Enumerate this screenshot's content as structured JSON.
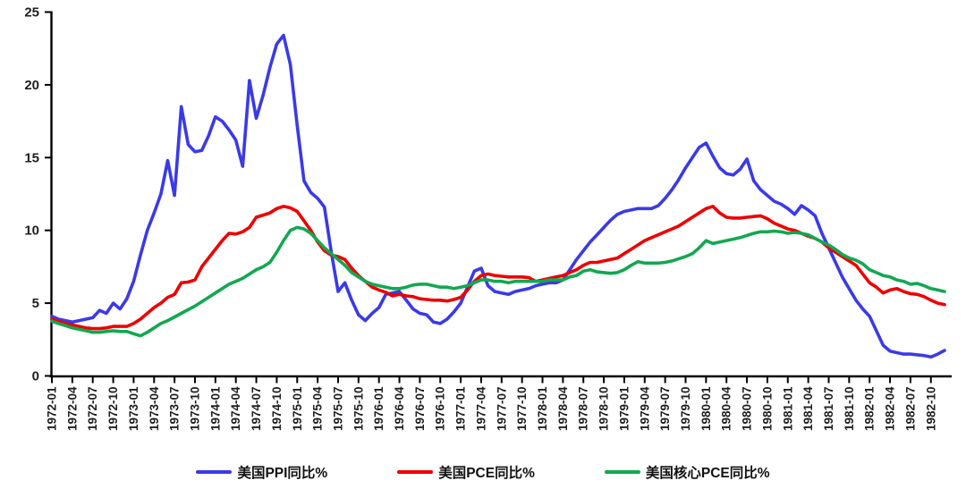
{
  "chart_data": {
    "type": "line",
    "title": "",
    "xlabel": "",
    "ylabel": "",
    "x_unit": "month",
    "x_start": "1972-01",
    "x_end": "1982-12",
    "x_tick_every_months": 3,
    "x_tick_labels": [
      "1972-01",
      "1972-04",
      "1972-07",
      "1972-10",
      "1973-01",
      "1973-04",
      "1973-07",
      "1973-10",
      "1974-01",
      "1974-04",
      "1974-07",
      "1974-10",
      "1975-01",
      "1975-04",
      "1975-07",
      "1975-10",
      "1976-01",
      "1976-04",
      "1976-07",
      "1976-10",
      "1977-01",
      "1977-04",
      "1977-07",
      "1977-10",
      "1978-01",
      "1978-04",
      "1978-07",
      "1978-10",
      "1979-01",
      "1979-04",
      "1979-07",
      "1979-10",
      "1980-01",
      "1980-04",
      "1980-07",
      "1980-10",
      "1981-01",
      "1981-04",
      "1981-07",
      "1981-10",
      "1982-01",
      "1982-04",
      "1982-07",
      "1982-10"
    ],
    "ylim": [
      0,
      25
    ],
    "y_ticks": [
      0,
      5,
      10,
      15,
      20,
      25
    ],
    "grid": "off",
    "legend_position": "bottom",
    "axis_color": "#000000",
    "series": [
      {
        "name": "美国PPI同比%",
        "color": "#3A3AE8",
        "values": [
          4.1,
          3.9,
          3.8,
          3.7,
          3.8,
          3.9,
          4.0,
          4.5,
          4.3,
          5.0,
          4.6,
          5.3,
          6.5,
          8.3,
          10.0,
          11.2,
          12.5,
          14.8,
          12.4,
          18.5,
          15.9,
          15.4,
          15.5,
          16.5,
          17.8,
          17.5,
          16.9,
          16.2,
          14.4,
          20.3,
          17.7,
          19.3,
          21.2,
          22.8,
          23.4,
          21.4,
          17.2,
          13.4,
          12.6,
          12.2,
          11.6,
          8.5,
          5.8,
          6.4,
          5.2,
          4.2,
          3.8,
          4.3,
          4.7,
          5.6,
          5.7,
          5.8,
          5.2,
          4.6,
          4.3,
          4.2,
          3.7,
          3.6,
          3.9,
          4.4,
          5.0,
          6.1,
          7.2,
          7.4,
          6.2,
          5.8,
          5.7,
          5.6,
          5.8,
          5.9,
          6.0,
          6.2,
          6.3,
          6.4,
          6.4,
          6.6,
          7.3,
          8.0,
          8.6,
          9.2,
          9.7,
          10.2,
          10.7,
          11.1,
          11.3,
          11.4,
          11.5,
          11.5,
          11.5,
          11.7,
          12.2,
          12.8,
          13.5,
          14.3,
          15.0,
          15.7,
          16.0,
          15.1,
          14.3,
          13.9,
          13.8,
          14.2,
          14.9,
          13.4,
          12.8,
          12.4,
          12.0,
          11.8,
          11.5,
          11.1,
          11.7,
          11.4,
          11.0,
          9.8,
          8.8,
          7.8,
          6.8,
          6.0,
          5.2,
          4.6,
          4.1,
          3.1,
          2.1,
          1.7,
          1.6,
          1.5,
          1.5,
          1.45,
          1.4,
          1.3,
          1.5,
          1.75
        ]
      },
      {
        "name": "美国PCE同比%",
        "color": "#EE0000",
        "values": [
          3.9,
          3.75,
          3.6,
          3.5,
          3.4,
          3.3,
          3.25,
          3.25,
          3.3,
          3.4,
          3.4,
          3.4,
          3.6,
          3.9,
          4.3,
          4.7,
          5.0,
          5.4,
          5.6,
          6.4,
          6.45,
          6.6,
          7.5,
          8.1,
          8.7,
          9.3,
          9.8,
          9.75,
          9.9,
          10.2,
          10.9,
          11.05,
          11.2,
          11.5,
          11.65,
          11.55,
          11.3,
          10.65,
          10.0,
          9.2,
          8.6,
          8.3,
          8.2,
          8.0,
          7.4,
          6.9,
          6.5,
          6.1,
          5.9,
          5.75,
          5.5,
          5.6,
          5.5,
          5.45,
          5.3,
          5.25,
          5.2,
          5.2,
          5.15,
          5.25,
          5.4,
          5.9,
          6.5,
          6.9,
          7.0,
          6.9,
          6.85,
          6.8,
          6.8,
          6.8,
          6.75,
          6.5,
          6.6,
          6.7,
          6.8,
          6.9,
          7.1,
          7.3,
          7.6,
          7.8,
          7.8,
          7.9,
          8.0,
          8.1,
          8.4,
          8.7,
          9.0,
          9.3,
          9.5,
          9.7,
          9.9,
          10.1,
          10.3,
          10.6,
          10.9,
          11.2,
          11.5,
          11.65,
          11.2,
          10.9,
          10.85,
          10.85,
          10.9,
          10.95,
          11.0,
          10.8,
          10.5,
          10.3,
          10.1,
          10.0,
          9.8,
          9.6,
          9.45,
          9.2,
          8.8,
          8.5,
          8.2,
          7.9,
          7.6,
          7.0,
          6.4,
          6.1,
          5.7,
          5.9,
          6.0,
          5.8,
          5.65,
          5.6,
          5.45,
          5.2,
          5.0,
          4.9
        ]
      },
      {
        "name": "美国核心PCE同比%",
        "color": "#12A851",
        "values": [
          3.75,
          3.6,
          3.45,
          3.3,
          3.2,
          3.1,
          3.0,
          3.0,
          3.05,
          3.1,
          3.05,
          3.05,
          2.9,
          2.75,
          3.0,
          3.3,
          3.6,
          3.8,
          4.05,
          4.3,
          4.55,
          4.8,
          5.1,
          5.4,
          5.7,
          6.0,
          6.3,
          6.5,
          6.7,
          7.0,
          7.3,
          7.5,
          7.8,
          8.5,
          9.3,
          10.0,
          10.2,
          10.1,
          9.8,
          9.3,
          8.8,
          8.4,
          8.0,
          7.6,
          7.1,
          6.8,
          6.5,
          6.3,
          6.2,
          6.1,
          6.0,
          6.0,
          6.1,
          6.25,
          6.3,
          6.3,
          6.2,
          6.1,
          6.1,
          6.0,
          6.1,
          6.2,
          6.4,
          6.6,
          6.6,
          6.5,
          6.5,
          6.4,
          6.5,
          6.5,
          6.5,
          6.5,
          6.5,
          6.6,
          6.6,
          6.6,
          6.8,
          6.9,
          7.2,
          7.3,
          7.15,
          7.1,
          7.05,
          7.1,
          7.3,
          7.6,
          7.85,
          7.75,
          7.75,
          7.75,
          7.8,
          7.9,
          8.05,
          8.2,
          8.4,
          8.8,
          9.3,
          9.1,
          9.2,
          9.3,
          9.4,
          9.5,
          9.65,
          9.8,
          9.9,
          9.9,
          9.95,
          9.9,
          9.8,
          9.85,
          9.8,
          9.7,
          9.45,
          9.2,
          9.0,
          8.7,
          8.35,
          8.1,
          7.95,
          7.7,
          7.3,
          7.1,
          6.9,
          6.8,
          6.6,
          6.5,
          6.3,
          6.35,
          6.2,
          6.0,
          5.9,
          5.8
        ]
      }
    ]
  }
}
